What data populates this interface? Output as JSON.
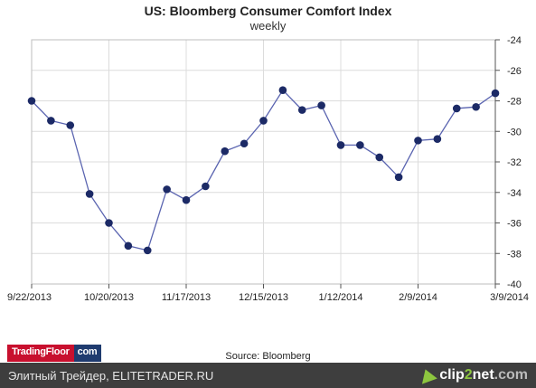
{
  "chart_data": {
    "type": "line",
    "title": "US:  Bloomberg Consumer Comfort Index",
    "subtitle": "weekly",
    "source": "Source:  Bloomberg",
    "y_axis_side": "right",
    "ylim": [
      -40,
      -24
    ],
    "yticks": [
      -24,
      -26,
      -28,
      -30,
      -32,
      -34,
      -36,
      -38,
      -40
    ],
    "xtick_labels": [
      "9/22/2013",
      "10/20/2013",
      "11/17/2013",
      "12/15/2013",
      "1/12/2014",
      "2/9/2014",
      "3/9/2014"
    ],
    "grid": true,
    "line_color": "#5a64b0",
    "marker_color": "#1c2a66",
    "series": [
      {
        "x": [
          "9/22/2013",
          "9/29/2013",
          "10/6/2013",
          "10/13/2013",
          "10/20/2013",
          "10/27/2013",
          "11/3/2013",
          "11/10/2013",
          "11/17/2013",
          "11/24/2013",
          "12/1/2013",
          "12/8/2013",
          "12/15/2013",
          "12/22/2013",
          "12/29/2013",
          "1/5/2014",
          "1/12/2014",
          "1/19/2014",
          "1/26/2014",
          "2/2/2014",
          "2/9/2014",
          "2/16/2014",
          "2/23/2014",
          "3/2/2014",
          "3/9/2014"
        ],
        "values": [
          -28.0,
          -29.3,
          -29.6,
          -34.1,
          -36.0,
          -37.5,
          -37.8,
          -33.8,
          -34.5,
          -33.6,
          -31.3,
          -30.8,
          -29.3,
          -27.3,
          -28.6,
          -28.3,
          -30.9,
          -30.9,
          -31.7,
          -33.0,
          -30.6,
          -30.5,
          -28.5,
          -28.4,
          -27.5
        ]
      }
    ]
  },
  "branding": {
    "tradingfloor_part1": "TradingFloor",
    "tradingfloor_part2": "com",
    "footer_text": "Элитный Трейдер, ELITETRADER.RU",
    "clip_part1": "clip",
    "clip_part2": "2",
    "clip_part3": "net",
    "clip_part4": ".com"
  }
}
